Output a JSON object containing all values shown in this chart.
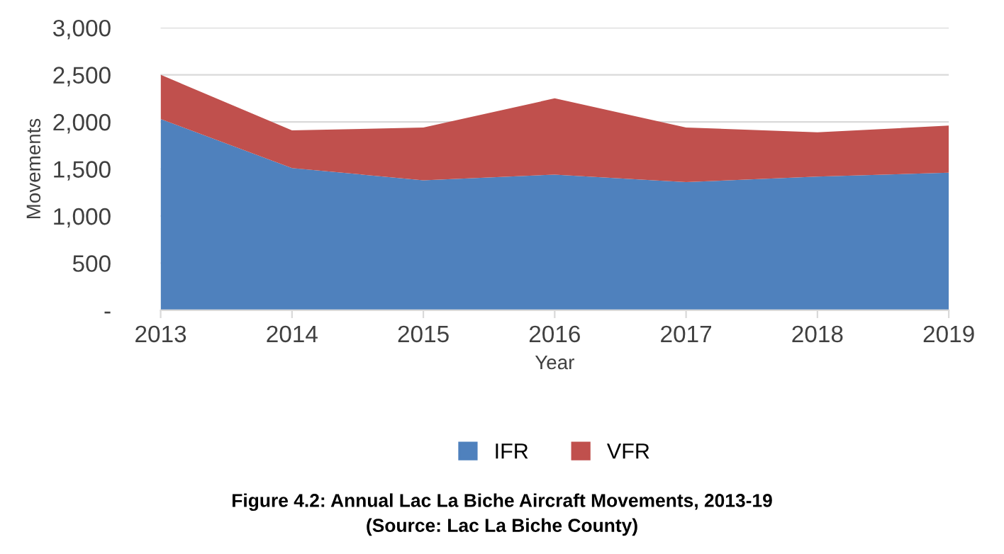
{
  "chart_data": {
    "type": "area",
    "title": "Figure 4.2: Annual Lac La Biche Aircraft Movements, 2013-19",
    "subtitle": "(Source: Lac La Biche County)",
    "xlabel": "Year",
    "ylabel": "Movements",
    "categories": [
      "2013",
      "2014",
      "2015",
      "2016",
      "2017",
      "2018",
      "2019"
    ],
    "stacked": true,
    "series": [
      {
        "name": "IFR",
        "color": "#4f81bd",
        "values": [
          2030,
          1510,
          1380,
          1440,
          1360,
          1420,
          1460
        ]
      },
      {
        "name": "VFR",
        "color": "#c0504d",
        "values": [
          470,
          400,
          560,
          810,
          580,
          470,
          500
        ]
      }
    ],
    "ylim": [
      0,
      3000
    ],
    "yticks": [
      {
        "value": 0,
        "label": "-"
      },
      {
        "value": 500,
        "label": "500"
      },
      {
        "value": 1000,
        "label": "1,000"
      },
      {
        "value": 1500,
        "label": "1,500"
      },
      {
        "value": 2000,
        "label": "2,000"
      },
      {
        "value": 2500,
        "label": "2,500"
      },
      {
        "value": 3000,
        "label": "3,000"
      }
    ],
    "grid": "y",
    "legend": "bottom"
  }
}
